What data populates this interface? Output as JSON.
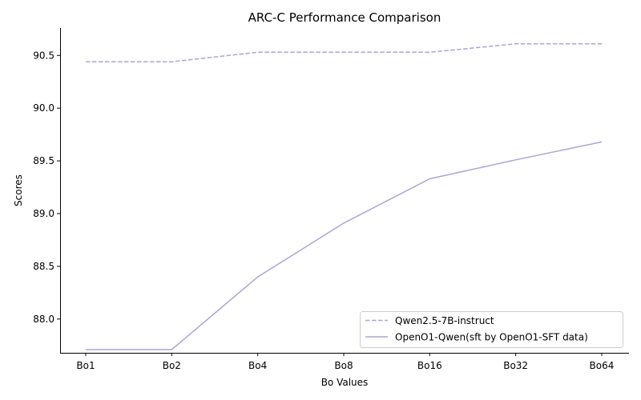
{
  "chart_data": {
    "type": "line",
    "title": "ARC-C Performance Comparison",
    "xlabel": "Bo Values",
    "ylabel": "Scores",
    "categories": [
      "Bo1",
      "Bo2",
      "Bo4",
      "Bo8",
      "Bo16",
      "Bo32",
      "Bo64"
    ],
    "ylim": [
      87.68,
      90.76
    ],
    "yticks": [
      88.0,
      88.5,
      89.0,
      89.5,
      90.0,
      90.5
    ],
    "ytick_labels": [
      "88.0",
      "88.5",
      "89.0",
      "89.5",
      "90.0",
      "90.5"
    ],
    "grid": false,
    "legend_position": "bottom-right",
    "series": [
      {
        "name": "Qwen2.5-7B-instruct",
        "style": "dashed",
        "color": "#aaa6d6",
        "values": [
          90.44,
          90.44,
          90.53,
          90.53,
          90.53,
          90.61,
          90.61
        ]
      },
      {
        "name": "OpenO1-Qwen(sft by OpenO1-SFT data)",
        "style": "solid",
        "color": "#aaa6d6",
        "values": [
          87.71,
          87.71,
          88.4,
          88.91,
          89.33,
          89.51,
          89.68
        ]
      }
    ]
  }
}
